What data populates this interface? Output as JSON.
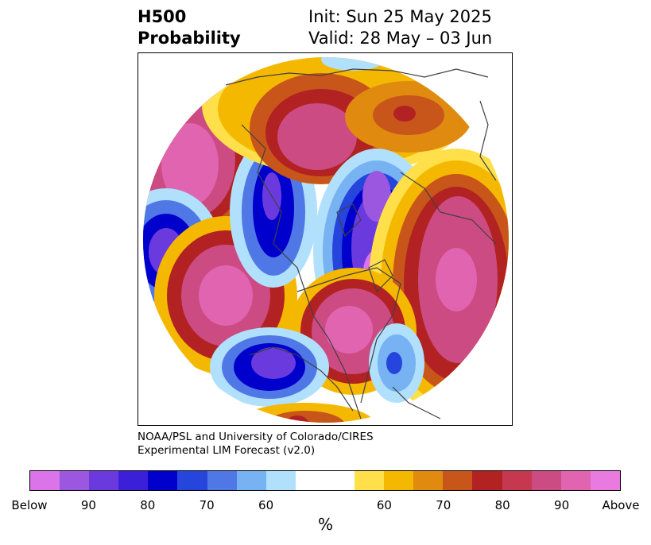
{
  "header": {
    "title_line1": "H500",
    "title_line2": "Probability",
    "init_text": "Init: Sun 25 May 2025",
    "valid_text": "Valid: 28 May – 03 Jun"
  },
  "credit": {
    "line1": "NOAA/PSL and University of Colorado/CIRES",
    "line2": "Experimental LIM Forecast (v2.0)"
  },
  "colorbar": {
    "unit": "%",
    "colors": [
      "#da74e8",
      "#9c57e0",
      "#6b3adf",
      "#3c1fd8",
      "#0000cc",
      "#2545dc",
      "#4f78e6",
      "#77b2f2",
      "#b0e0fc",
      "#ffffff",
      "#ffffff",
      "#ffe04a",
      "#f5b800",
      "#e08a10",
      "#c8561a",
      "#b22222",
      "#c63850",
      "#cc4b82",
      "#e064b0",
      "#e87ae0"
    ],
    "tick_labels": [
      "Below",
      "90",
      "80",
      "70",
      "60",
      "60",
      "70",
      "80",
      "90",
      "Above"
    ]
  },
  "map": {
    "projection": "north polar stereographic",
    "legend_colors": {
      "below_strong": "#9c57e0",
      "below_mid": "#0000cc",
      "below_weak": "#77b2f2",
      "above_weak": "#f5b800",
      "above_mid": "#b22222",
      "above_strong": "#e064b0"
    }
  }
}
